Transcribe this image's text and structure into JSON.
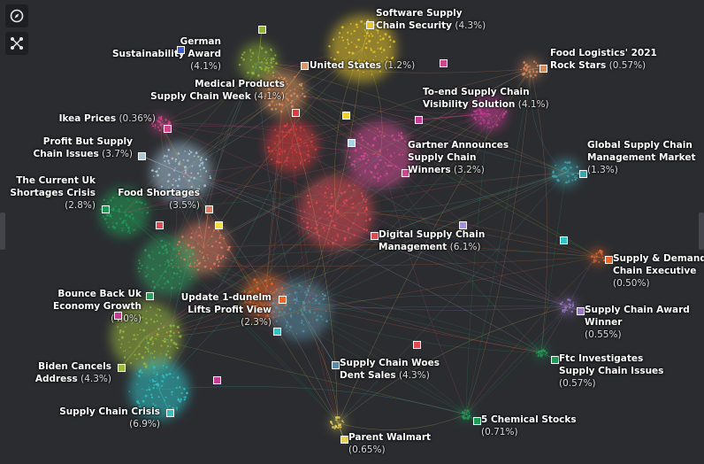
{
  "toolbar": {
    "compass_icon": "compass-icon",
    "network_icon": "network-icon"
  },
  "clusters": [
    {
      "id": "software",
      "title": [
        "Software Supply",
        "Chain Security"
      ],
      "pct": "(4.3%)",
      "color": "#e8c62a"
    },
    {
      "id": "german",
      "title": [
        "German",
        "Sustainability Award"
      ],
      "pct": "(4.1%)",
      "color": "#8fb234"
    },
    {
      "id": "us",
      "title": [
        "United States"
      ],
      "pct": "(1.2%)",
      "color": "#e2935b"
    },
    {
      "id": "food_logistics",
      "title": [
        "Food Logistics' 2021",
        "Rock Stars"
      ],
      "pct": "(0.57%)",
      "color": "#d98a5a"
    },
    {
      "id": "medical",
      "title": [
        "Medical Products",
        "Supply Chain Week"
      ],
      "pct": "(4.1%)",
      "color": "#dd3c3c"
    },
    {
      "id": "to_end",
      "title": [
        "To-end Supply Chain",
        "Visibility Solution"
      ],
      "pct": "(4.1%)",
      "color": "#c63c94"
    },
    {
      "id": "ikea",
      "title": [
        "Ikea Prices"
      ],
      "pct": "(0.36%)",
      "color": "#d1468a"
    },
    {
      "id": "profit_but",
      "title": [
        "Profit But Supply",
        "Chain Issues"
      ],
      "pct": "(3.7%)",
      "color": "#a6c5d8"
    },
    {
      "id": "gartner",
      "title": [
        "Gartner Announces",
        "Supply Chain",
        "Winners"
      ],
      "pct": "(3.2%)",
      "color": "#cf4b91"
    },
    {
      "id": "global",
      "title": [
        "Global Supply Chain",
        "Management Market"
      ],
      "pct": "(1.3%)",
      "color": "#3fa3ab"
    },
    {
      "id": "uk_short",
      "title": [
        "The Current Uk",
        "Shortages Crisis"
      ],
      "pct": "(2.8%)",
      "color": "#1f9a57"
    },
    {
      "id": "food_short",
      "title": [
        "Food Shortages"
      ],
      "pct": "(3.5%)",
      "color": "#e07b60"
    },
    {
      "id": "digital",
      "title": [
        "Digital Supply Chain",
        "Management"
      ],
      "pct": "(6.1%)",
      "color": "#e04a52"
    },
    {
      "id": "demand",
      "title": [
        "Supply & Demand",
        "Chain Executive"
      ],
      "pct": "(0.50%)",
      "color": "#e8662a"
    },
    {
      "id": "bounce",
      "title": [
        "Bounce Back Uk",
        "Economy Growth"
      ],
      "pct": "(4.0%)",
      "color": "#2f9c5e"
    },
    {
      "id": "update",
      "title": [
        "Update 1-dunelm",
        "Lifts Profit View"
      ],
      "pct": "(2.3%)",
      "color": "#e8662a"
    },
    {
      "id": "award",
      "title": [
        "Supply Chain Award",
        "Winner"
      ],
      "pct": "(0.55%)",
      "color": "#9b79c9"
    },
    {
      "id": "biden",
      "title": [
        "Biden Cancels",
        "Address"
      ],
      "pct": "(4.3%)",
      "color": "#9ab940"
    },
    {
      "id": "woes",
      "title": [
        "Supply Chain Woes",
        "Dent Sales"
      ],
      "pct": "(4.3%)",
      "color": "#5b8ea6"
    },
    {
      "id": "ftc",
      "title": [
        "Ftc Investigates",
        "Supply Chain Issues"
      ],
      "pct": "(0.57%)",
      "color": "#1f9a57"
    },
    {
      "id": "crisis",
      "title": [
        "Supply Chain Crisis"
      ],
      "pct": "(6.9%)",
      "color": "#2fc3c4"
    },
    {
      "id": "chemical",
      "title": [
        "5 Chemical Stocks"
      ],
      "pct": "(0.71%)",
      "color": "#1f9a57"
    },
    {
      "id": "walmart",
      "title": [
        "Parent Walmart"
      ],
      "pct": "(0.65%)",
      "color": "#e8d25a"
    }
  ]
}
